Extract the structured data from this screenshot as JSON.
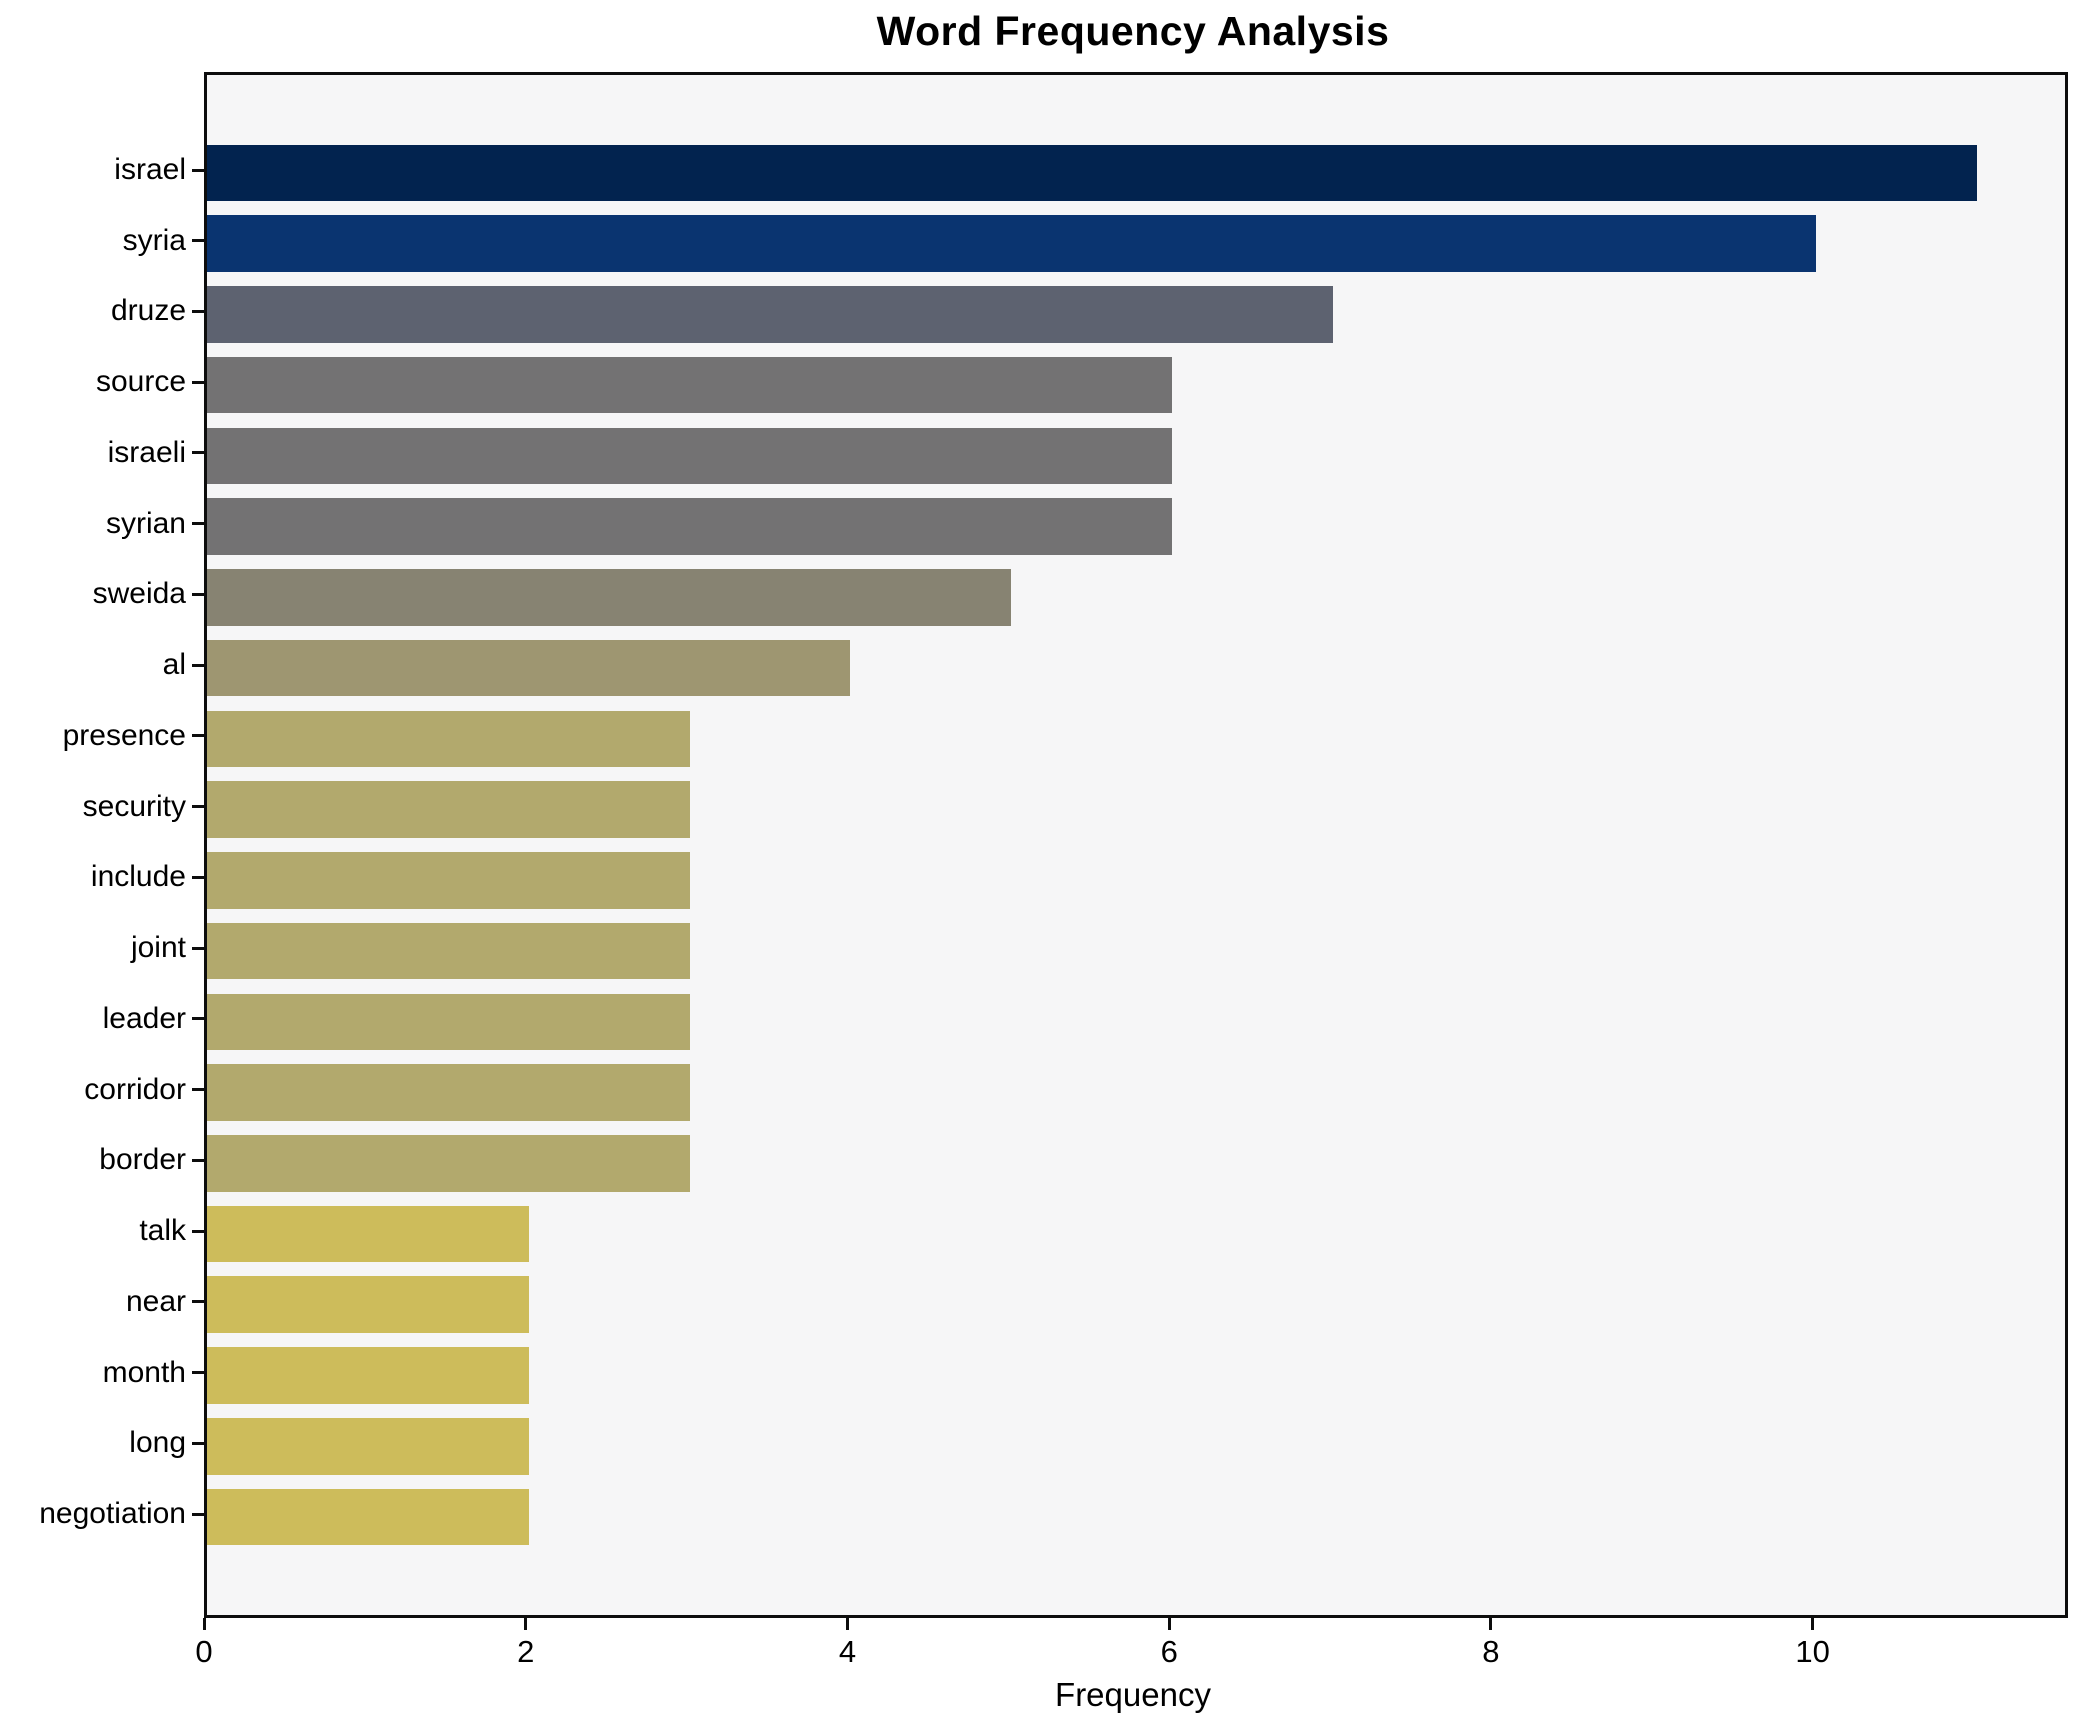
{
  "chart_data": {
    "type": "bar",
    "orientation": "horizontal",
    "title": "Word Frequency Analysis",
    "xlabel": "Frequency",
    "ylabel": "",
    "categories": [
      "israel",
      "syria",
      "druze",
      "source",
      "israeli",
      "syrian",
      "sweida",
      "al",
      "presence",
      "security",
      "include",
      "joint",
      "leader",
      "corridor",
      "border",
      "talk",
      "near",
      "month",
      "long",
      "negotiation"
    ],
    "values": [
      11,
      10,
      7,
      6,
      6,
      6,
      5,
      4,
      3,
      3,
      3,
      3,
      3,
      3,
      3,
      2,
      2,
      2,
      2,
      2
    ],
    "bar_colors": [
      "#02234f",
      "#0a3470",
      "#5d6270",
      "#737273",
      "#737273",
      "#737273",
      "#878372",
      "#9e9671",
      "#b2a96d",
      "#b2a96d",
      "#b2a96d",
      "#b2a96d",
      "#b2a96d",
      "#b2a96d",
      "#b2a96d",
      "#cdbc5b",
      "#cdbc5b",
      "#cdbc5b",
      "#cdbc5b",
      "#cdbc5b"
    ],
    "xlim": [
      0,
      11.55
    ],
    "xticks": [
      0,
      2,
      4,
      6,
      8,
      10
    ],
    "grid": false,
    "legend": null,
    "plot_background": "#f6f6f7",
    "figure_background": "#ffffff",
    "spine_color": "#0d0d0d"
  }
}
